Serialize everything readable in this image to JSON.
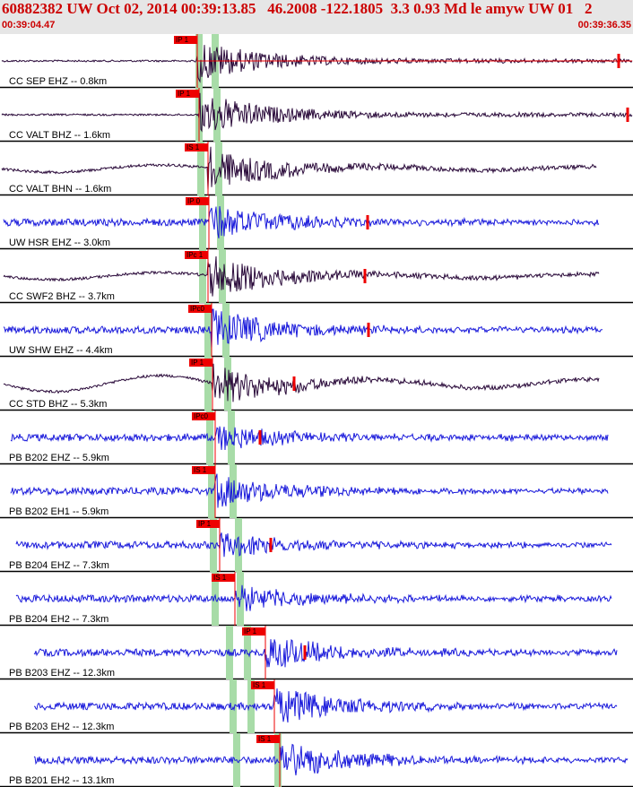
{
  "header": {
    "title": "60882382 UW Oct 02, 2014 00:39:13.85   46.2008 -122.1805  3.3 0.93 Md le amyw UW 01   2",
    "start_time": "00:39:04.47",
    "end_time": "00:39:36.35"
  },
  "colors": {
    "header_bg": "#e6e6e6",
    "header_text": "#cc0000",
    "trace_blue": "#1a1adb",
    "trace_dark": "#2a0a3a",
    "pick": "#ee0000",
    "window": "#a8dca8"
  },
  "chart_data": {
    "type": "seismogram",
    "time_range": [
      "00:39:04.47",
      "00:39:36.35"
    ],
    "traces": [
      {
        "label": "CC SEP EHZ -- 0.8km",
        "color": "dark",
        "picks": [
          "IP 1"
        ]
      },
      {
        "label": "CC VALT BHZ -- 1.6km",
        "color": "dark",
        "picks": [
          "IP 1"
        ]
      },
      {
        "label": "CC VALT BHN -- 1.6km",
        "color": "dark",
        "picks": [
          "IS 1"
        ]
      },
      {
        "label": "UW HSR EHZ -- 3.0km",
        "color": "blue",
        "picks": [
          "IP 0"
        ]
      },
      {
        "label": "CC SWF2 BHZ -- 3.7km",
        "color": "dark",
        "picks": [
          "IPc 1"
        ]
      },
      {
        "label": "UW SHW EHZ -- 4.4km",
        "color": "blue",
        "picks": [
          "IPc0"
        ]
      },
      {
        "label": "CC STD BHZ -- 5.3km",
        "color": "dark",
        "picks": [
          "IP 1"
        ]
      },
      {
        "label": "PB B202 EHZ -- 5.9km",
        "color": "blue",
        "picks": [
          "IPc0"
        ]
      },
      {
        "label": "PB B202 EH1 -- 5.9km",
        "color": "blue",
        "picks": [
          "IS 1"
        ]
      },
      {
        "label": "PB B204 EHZ -- 7.3km",
        "color": "blue",
        "picks": [
          "IP 1"
        ]
      },
      {
        "label": "PB B204 EH2 -- 7.3km",
        "color": "blue",
        "picks": [
          "IS 1"
        ]
      },
      {
        "label": "PB B203 EHZ -- 12.3km",
        "color": "blue",
        "picks": [
          "IP 1"
        ]
      },
      {
        "label": "PB B203 EH2 -- 12.3km",
        "color": "blue",
        "picks": [
          "IS 1"
        ]
      },
      {
        "label": "PB B201 EH2 -- 13.1km",
        "color": "blue",
        "picks": [
          "IS 1"
        ]
      }
    ]
  }
}
